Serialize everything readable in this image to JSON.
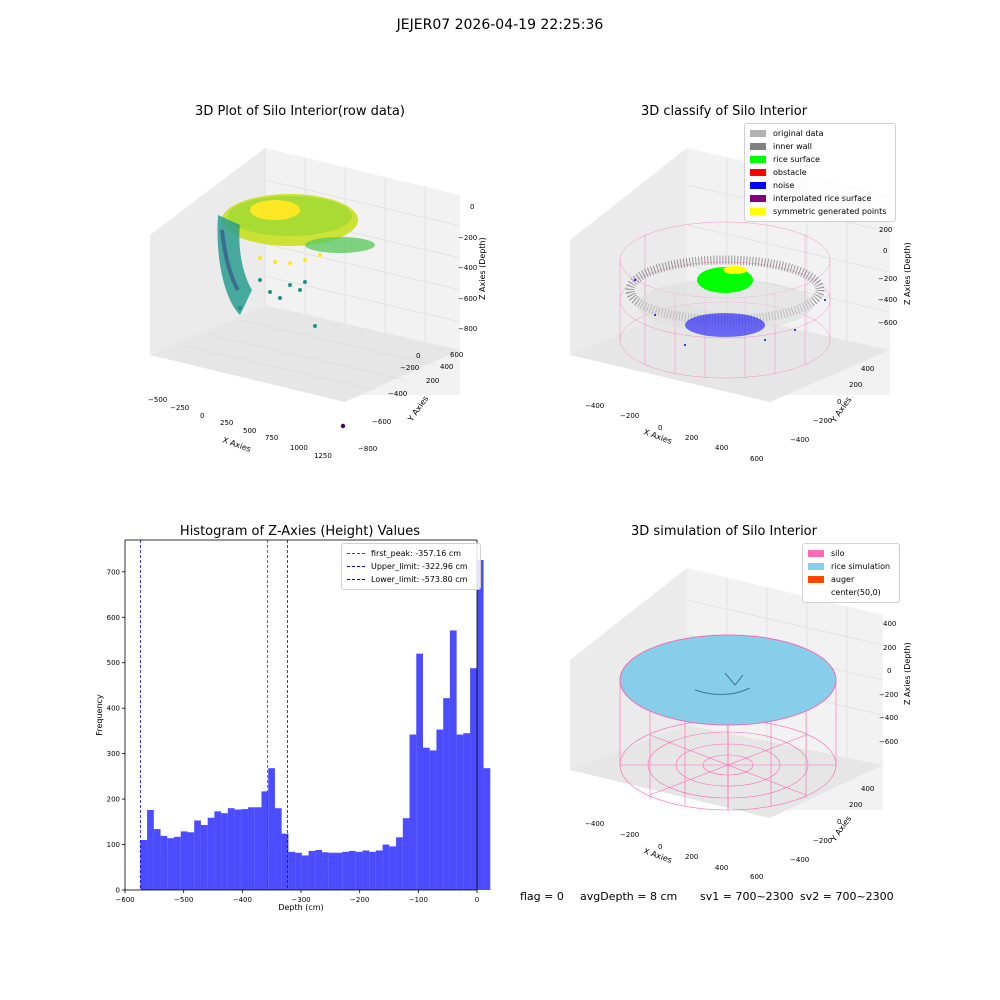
{
  "figure": {
    "suptitle": "JEJER07 2026-04-19 22:25:36"
  },
  "chart_data": [
    {
      "type": "scatter",
      "title": "3D Plot of Silo Interior(row data)",
      "xlabel": "X Axies",
      "ylabel": "Y Axies",
      "zlabel": "Z Axies (Depth)",
      "x_ticks": [
        "−500",
        "−250",
        "0",
        "250",
        "500",
        "750",
        "1000",
        "1250"
      ],
      "y_ticks": [
        "−800",
        "−600",
        "−400",
        "−200",
        "0",
        "200",
        "400",
        "600"
      ],
      "z_ticks": [
        "0",
        "−200",
        "−400",
        "−600",
        "−800"
      ],
      "colormap": "viridis"
    },
    {
      "type": "scatter",
      "title": "3D classify of Silo Interior",
      "xlabel": "X Axies",
      "ylabel": "Y Axies",
      "zlabel": "Z Axies (Depth)",
      "x_ticks": [
        "−400",
        "−200",
        "0",
        "200",
        "400",
        "600"
      ],
      "y_ticks": [
        "−400",
        "−200",
        "0",
        "200",
        "400"
      ],
      "z_ticks": [
        "200",
        "0",
        "−200",
        "−400",
        "−600"
      ],
      "legend": [
        {
          "label": "original data",
          "color": "#b3b3b3"
        },
        {
          "label": "inner wall",
          "color": "#808080"
        },
        {
          "label": "rice surface",
          "color": "#00ff00"
        },
        {
          "label": "obstacle",
          "color": "#ff0000"
        },
        {
          "label": "noise",
          "color": "#0000ff"
        },
        {
          "label": "interpolated rice surface",
          "color": "#800080"
        },
        {
          "label": "symmetric generated points",
          "color": "#ffff00"
        }
      ],
      "legend_position": "top-right"
    },
    {
      "type": "bar",
      "title": "Histogram of Z-Axies (Height) Values",
      "xlabel": "Depth (cm)",
      "ylabel": "Frequency",
      "xlim": [
        -600,
        0
      ],
      "ylim": [
        0,
        770
      ],
      "x_ticks": [
        -600,
        -500,
        -400,
        -300,
        -200,
        -100,
        0
      ],
      "y_ticks": [
        0,
        100,
        200,
        300,
        400,
        500,
        600,
        700
      ],
      "bin_start": -573.8,
      "bin_width": 11.47,
      "values": [
        110,
        176,
        134,
        119,
        114,
        117,
        129,
        127,
        153,
        143,
        159,
        173,
        169,
        180,
        177,
        178,
        182,
        182,
        217,
        268,
        180,
        124,
        84,
        82,
        76,
        86,
        88,
        83,
        82,
        82,
        84,
        86,
        84,
        87,
        84,
        87,
        100,
        96,
        116,
        158,
        342,
        520,
        313,
        307,
        353,
        422,
        571,
        342,
        345,
        488,
        726,
        268
      ],
      "bar_color": "#0000ff",
      "bar_alpha": 0.7,
      "lines": [
        {
          "label": "first_peak: -357.16 cm",
          "x": -357.16,
          "color": "#ff0000"
        },
        {
          "label": "Upper_limit: -322.96 cm",
          "x": -322.96,
          "color": "#0000ff"
        },
        {
          "label": "Lower_limit: -573.80 cm",
          "x": -573.8,
          "color": "#0000ff"
        }
      ],
      "legend_position": "top-right"
    },
    {
      "type": "scatter",
      "title": "3D simulation of Silo Interior",
      "xlabel": "X Axies",
      "ylabel": "Y Axies",
      "zlabel": "Z Axies (Depth)",
      "x_ticks": [
        "−400",
        "−200",
        "0",
        "200",
        "400",
        "600"
      ],
      "y_ticks": [
        "−400",
        "−200",
        "0",
        "200",
        "400"
      ],
      "z_ticks": [
        "400",
        "200",
        "0",
        "−200",
        "−400",
        "−600"
      ],
      "legend": [
        {
          "label": "silo",
          "color": "#ff69b4"
        },
        {
          "label": "rice simulation",
          "color": "#87ceeb"
        },
        {
          "label": "auger",
          "color": "#ff4500"
        },
        {
          "label": "center(50,0)",
          "color": "#ffffff"
        }
      ],
      "legend_position": "top-right"
    }
  ],
  "footer": {
    "flag": "flag = 0",
    "avg_depth": "avgDepth = 8 cm",
    "sv1": "sv1 = 700~2300",
    "sv2": "sv2 = 700~2300"
  }
}
